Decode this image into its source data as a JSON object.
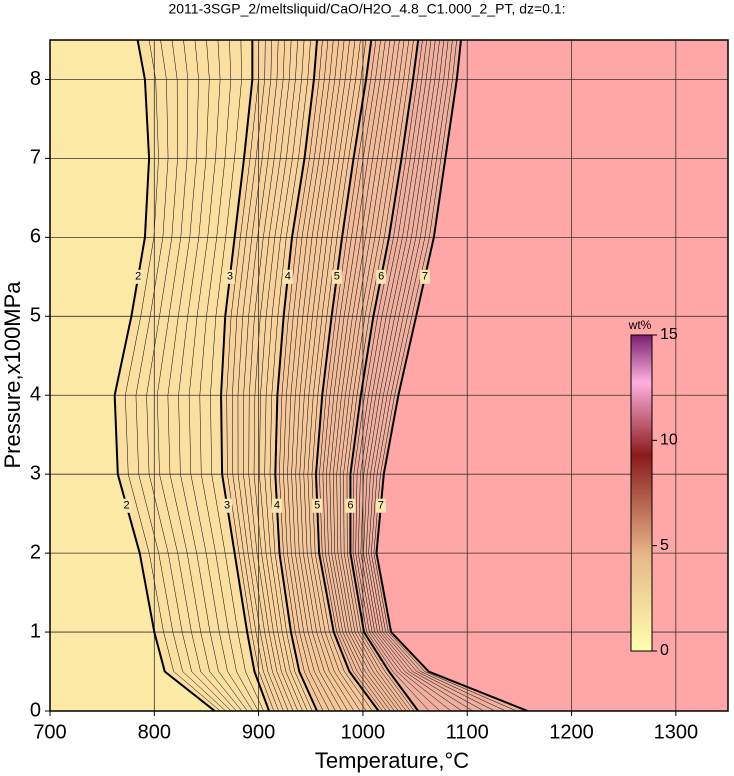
{
  "chart_data": {
    "type": "contour",
    "title": "2011-3SGP_2/meltsliquid/CaO/H2O_4.8_C1.000_2_PT, dz=0.1:",
    "x_label": "Temperature,°C",
    "y_label": "Pressure,x100MPa",
    "xlim": [
      700,
      1350
    ],
    "xticks": [
      700,
      800,
      900,
      1000,
      1100,
      1200,
      1300
    ],
    "ylim": [
      0,
      8.5
    ],
    "yticks": [
      0,
      1,
      2,
      3,
      4,
      5,
      6,
      7,
      8
    ],
    "grid": true,
    "background_color": "#fde9a6",
    "y": [
      0,
      0.5,
      1,
      2,
      3,
      4,
      5,
      6,
      7,
      8,
      8.5
    ],
    "series": [
      {
        "name": "2",
        "color": "#fbdfa1",
        "values": [
          858,
          810,
          800,
          786,
          765,
          762,
          778,
          791,
          795,
          791,
          784
        ]
      },
      {
        "name": "3",
        "color": "#f8d39d",
        "values": [
          910,
          896,
          889,
          877,
          865,
          864,
          868,
          877,
          886,
          894,
          894
        ]
      },
      {
        "name": "4",
        "color": "#f5c79b",
        "values": [
          956,
          939,
          931,
          920,
          916,
          918,
          924,
          932,
          944,
          953,
          956
        ]
      },
      {
        "name": "5",
        "color": "#f2bb9c",
        "values": [
          1015,
          987,
          972,
          958,
          955,
          961,
          970,
          980,
          991,
          1003,
          1008
        ]
      },
      {
        "name": "6",
        "color": "#efb09f",
        "values": [
          1053,
          1025,
          1001,
          988,
          988,
          998,
          1010,
          1025,
          1037,
          1048,
          1053
        ]
      },
      {
        "name": "7",
        "color": "#ffa6a6",
        "values": [
          1158,
          1063,
          1027,
          1013,
          1020,
          1034,
          1051,
          1068,
          1079,
          1090,
          1094
        ]
      }
    ],
    "colorbar": {
      "label": "wt%",
      "lim": [
        0,
        15
      ],
      "ticks": [
        0,
        5,
        10,
        15
      ]
    }
  }
}
